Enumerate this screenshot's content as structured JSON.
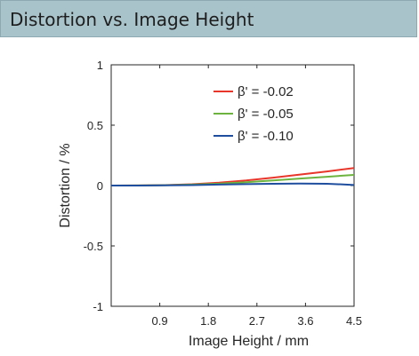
{
  "header": {
    "title": "Distortion vs. Image Height"
  },
  "chart_data": {
    "type": "line",
    "xlabel": "Image Height / mm",
    "ylabel": "Distortion / %",
    "xlim": [
      0,
      4.5
    ],
    "ylim": [
      -1,
      1
    ],
    "xticks": [
      "0.9",
      "1.8",
      "2.7",
      "3.6",
      "4.5"
    ],
    "xtick_values": [
      0.9,
      1.8,
      2.7,
      3.6,
      4.5
    ],
    "yticks": [
      "1",
      "0.5",
      "0",
      "-0.5",
      "-1"
    ],
    "ytick_values": [
      1,
      0.5,
      0,
      -0.5,
      -1
    ],
    "grid": false,
    "legend_position": "top-right",
    "series": [
      {
        "name": "β' = -0.02",
        "color": "#e8362b",
        "x": [
          0,
          0.5,
          1.0,
          1.5,
          2.0,
          2.5,
          3.0,
          3.5,
          4.0,
          4.5
        ],
        "y": [
          0,
          0.0008,
          0.004,
          0.011,
          0.024,
          0.042,
          0.065,
          0.091,
          0.117,
          0.145
        ]
      },
      {
        "name": "β' = -0.05",
        "color": "#6db33f",
        "x": [
          0,
          0.5,
          1.0,
          1.5,
          2.0,
          2.5,
          3.0,
          3.5,
          4.0,
          4.5
        ],
        "y": [
          0,
          0.0005,
          0.003,
          0.008,
          0.016,
          0.028,
          0.042,
          0.058,
          0.073,
          0.088
        ]
      },
      {
        "name": "β' = -0.10",
        "color": "#1f4e9e",
        "x": [
          0,
          0.5,
          1.0,
          1.5,
          2.0,
          2.5,
          3.0,
          3.5,
          4.0,
          4.5
        ],
        "y": [
          0,
          0.0003,
          0.0015,
          0.004,
          0.008,
          0.012,
          0.015,
          0.017,
          0.015,
          0.005
        ]
      }
    ]
  }
}
